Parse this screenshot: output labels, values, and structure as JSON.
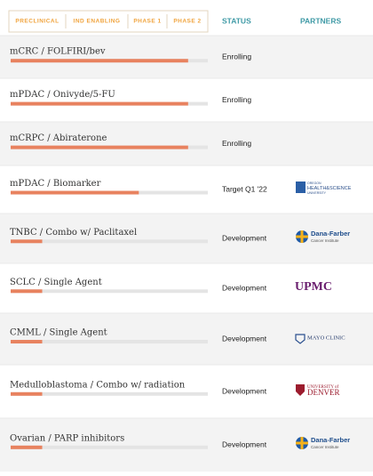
{
  "header": {
    "phases": [
      "PRECLINICAL",
      "IND ENABLING",
      "PHASE 1",
      "PHASE 2"
    ],
    "status": "STATUS",
    "partners": "PARTNERS"
  },
  "rows": [
    {
      "name": "mCRC / FOLFIRI/bev",
      "progress": 0.9,
      "status": "Enrolling"
    },
    {
      "name": "mPDAC / Onivyde/5-FU",
      "progress": 0.9,
      "status": "Enrolling"
    },
    {
      "name": "mCRPC / Abiraterone",
      "progress": 0.9,
      "status": "Enrolling"
    },
    {
      "name": "mPDAC / Biomarker",
      "progress": 0.65,
      "status": "Target Q1 '22",
      "partner": {
        "logo": "ohsu",
        "lines": [
          "OREGON",
          "HEALTH&SCIENCE",
          "UNIVERSITY"
        ]
      }
    },
    {
      "name": "TNBC / Combo w/ Paclitaxel",
      "progress": 0.16,
      "status": "Development",
      "partner": {
        "logo": "dana",
        "lines": [
          "Dana-Farber",
          "Cancer Institute"
        ]
      }
    },
    {
      "name": "SCLC / Single Agent",
      "progress": 0.16,
      "status": "Development",
      "partner": {
        "logo": "upmc",
        "lines": [
          "UPMC"
        ]
      }
    },
    {
      "name": "CMML / Single Agent",
      "progress": 0.16,
      "status": "Development",
      "partner": {
        "logo": "mayo",
        "lines": [
          "MAYO CLINIC"
        ]
      }
    },
    {
      "name": "Medulloblastoma / Combo w/ radiation",
      "progress": 0.16,
      "status": "Development",
      "partner": {
        "logo": "denver",
        "lines": [
          "UNIVERSITY of",
          "DENVER"
        ]
      }
    },
    {
      "name": "Ovarian / PARP inhibitors",
      "progress": 0.16,
      "status": "Development",
      "partner": {
        "logo": "dana",
        "lines": [
          "Dana-Farber",
          "Cancer Institute"
        ]
      }
    }
  ]
}
